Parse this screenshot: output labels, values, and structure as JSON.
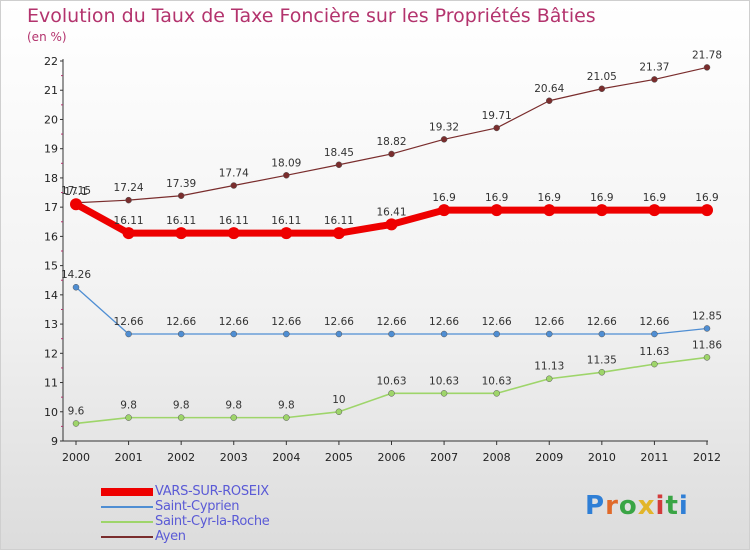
{
  "title": "Evolution du Taux de Taxe Foncière sur les Propriétés Bâties",
  "unit_label": "(en %)",
  "logo_text": "Proxiti",
  "colors": {
    "title": "#b3336d",
    "legend_text": "#5a5ad6",
    "logo": [
      "#2f7fd6",
      "#e06a2a",
      "#3aa545",
      "#e2b52a",
      "#d23b3b",
      "#3aa545",
      "#2f7fd6"
    ]
  },
  "chart_data": {
    "type": "line",
    "title": "Evolution du Taux de Taxe Foncière sur les Propriétés Bâties",
    "ylabel": "(en %)",
    "ylim": [
      9,
      22
    ],
    "yticks": [
      9,
      10,
      11,
      12,
      13,
      14,
      15,
      16,
      17,
      18,
      19,
      20,
      21,
      22
    ],
    "grid": "none",
    "legend_position": "bottom-left",
    "x": [
      "2000",
      "2001",
      "2002",
      "2003",
      "2004",
      "2005",
      "2006",
      "2007",
      "2008",
      "2009",
      "2010",
      "2011",
      "2012"
    ],
    "series": [
      {
        "name": "VARS-SUR-ROSEIX",
        "color": "#ee0000",
        "width": 7,
        "values": [
          17.1,
          16.11,
          16.11,
          16.11,
          16.11,
          16.11,
          16.41,
          16.9,
          16.9,
          16.9,
          16.9,
          16.9,
          16.9
        ],
        "labels": [
          "17.1",
          "16.11",
          "16.11",
          "16.11",
          "16.11",
          "16.11",
          "16.41",
          "16.9",
          "16.9",
          "16.9",
          "16.9",
          "16.9",
          "16.9"
        ]
      },
      {
        "name": "Saint-Cyprien",
        "color": "#4f8ed3",
        "width": 1.3,
        "values": [
          14.26,
          12.66,
          12.66,
          12.66,
          12.66,
          12.66,
          12.66,
          12.66,
          12.66,
          12.66,
          12.66,
          12.66,
          12.85
        ],
        "labels": [
          "14.26",
          "12.66",
          "12.66",
          "12.66",
          "12.66",
          "12.66",
          "12.66",
          "12.66",
          "12.66",
          "12.66",
          "12.66",
          "12.66",
          "12.85"
        ]
      },
      {
        "name": "Saint-Cyr-la-Roche",
        "color": "#9ed56a",
        "width": 1.6,
        "values": [
          9.6,
          9.8,
          9.8,
          9.8,
          9.8,
          10,
          10.63,
          10.63,
          10.63,
          11.13,
          11.35,
          11.63,
          11.86
        ],
        "labels": [
          "9.6",
          "9.8",
          "9.8",
          "9.8",
          "9.8",
          "10",
          "10.63",
          "10.63",
          "10.63",
          "11.13",
          "11.35",
          "11.63",
          "11.86"
        ]
      },
      {
        "name": "Ayen",
        "color": "#7a2d2d",
        "width": 1.2,
        "values": [
          17.15,
          17.24,
          17.39,
          17.74,
          18.09,
          18.45,
          18.82,
          19.32,
          19.71,
          20.64,
          21.05,
          21.37,
          21.78
        ],
        "labels": [
          "17.15",
          "17.24",
          "17.39",
          "17.74",
          "18.09",
          "18.45",
          "18.82",
          "19.32",
          "19.71",
          "20.64",
          "21.05",
          "21.37",
          "21.78"
        ]
      }
    ]
  }
}
